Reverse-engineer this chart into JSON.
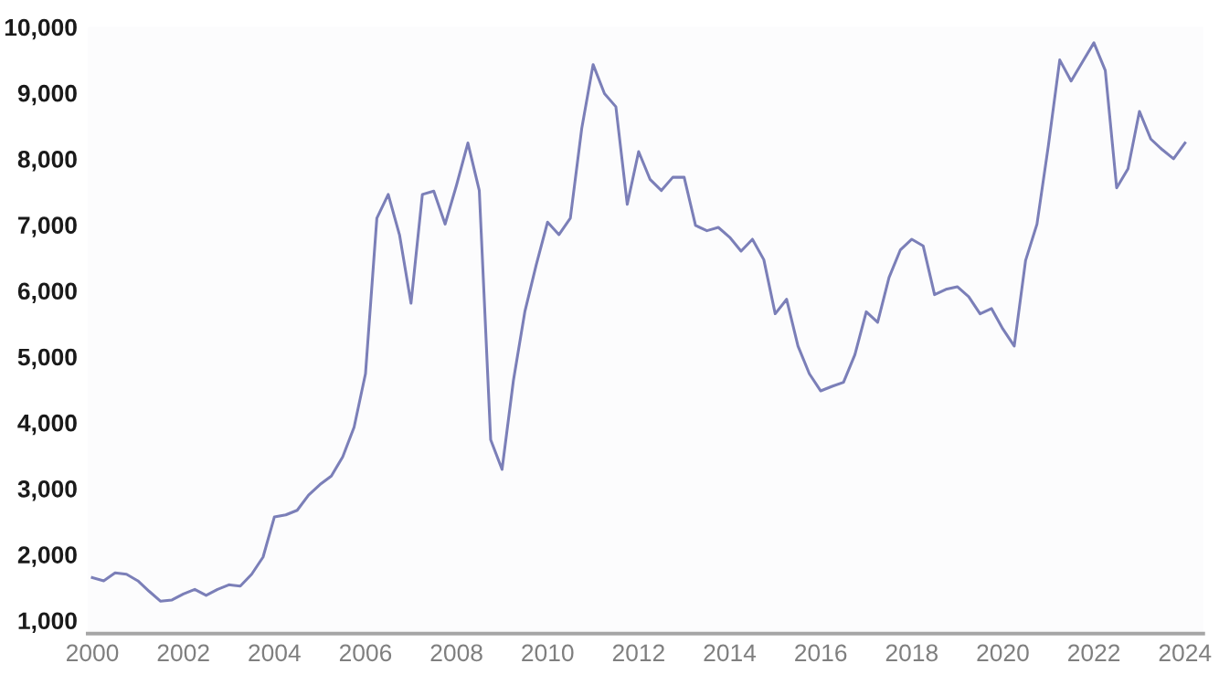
{
  "chart_data": {
    "type": "line",
    "xlim": [
      1999.9,
      2024.4
    ],
    "ylim": [
      800,
      10000
    ],
    "xticks": [
      2000,
      2002,
      2004,
      2006,
      2008,
      2010,
      2012,
      2014,
      2016,
      2018,
      2020,
      2022,
      2024
    ],
    "yticks": [
      {
        "value": 1000,
        "label": "1,000"
      },
      {
        "value": 2000,
        "label": "2,000"
      },
      {
        "value": 3000,
        "label": "3,000"
      },
      {
        "value": 4000,
        "label": "4,000"
      },
      {
        "value": 5000,
        "label": "5,000"
      },
      {
        "value": 6000,
        "label": "6,000"
      },
      {
        "value": 7000,
        "label": "7,000"
      },
      {
        "value": 8000,
        "label": "8,000"
      },
      {
        "value": 9000,
        "label": "9,000"
      },
      {
        "value": 10000,
        "label": "10,000"
      }
    ],
    "grid": false,
    "legend": false,
    "marker": "none",
    "line_style": "solid",
    "series": [
      {
        "color": "#7b7fb8",
        "x": [
          2000.0,
          2000.25,
          2000.5,
          2000.75,
          2001.0,
          2001.25,
          2001.5,
          2001.75,
          2002.0,
          2002.25,
          2002.5,
          2002.75,
          2003.0,
          2003.25,
          2003.5,
          2003.75,
          2004.0,
          2004.25,
          2004.5,
          2004.75,
          2005.0,
          2005.25,
          2005.5,
          2005.75,
          2006.0,
          2006.25,
          2006.5,
          2006.75,
          2007.0,
          2007.25,
          2007.5,
          2007.75,
          2008.0,
          2008.25,
          2008.5,
          2008.75,
          2009.0,
          2009.25,
          2009.5,
          2009.75,
          2010.0,
          2010.25,
          2010.5,
          2010.75,
          2011.0,
          2011.25,
          2011.5,
          2011.75,
          2012.0,
          2012.25,
          2012.5,
          2012.75,
          2013.0,
          2013.25,
          2013.5,
          2013.75,
          2014.0,
          2014.25,
          2014.5,
          2014.75,
          2015.0,
          2015.25,
          2015.5,
          2015.75,
          2016.0,
          2016.25,
          2016.5,
          2016.75,
          2017.0,
          2017.25,
          2017.5,
          2017.75,
          2018.0,
          2018.25,
          2018.5,
          2018.75,
          2019.0,
          2019.25,
          2019.5,
          2019.75,
          2020.0,
          2020.25,
          2020.5,
          2020.75,
          2021.0,
          2021.25,
          2021.5,
          2021.75,
          2022.0,
          2022.25,
          2022.5,
          2022.75,
          2023.0,
          2023.25,
          2023.5,
          2023.75,
          2024.0
        ],
        "values": [
          1650,
          1600,
          1720,
          1700,
          1600,
          1440,
          1290,
          1310,
          1400,
          1470,
          1380,
          1470,
          1540,
          1520,
          1700,
          1960,
          2570,
          2600,
          2670,
          2900,
          3060,
          3190,
          3480,
          3930,
          4740,
          7100,
          7460,
          6840,
          5810,
          7460,
          7510,
          7010,
          7600,
          8240,
          7520,
          3740,
          3290,
          4640,
          5680,
          6390,
          7040,
          6850,
          7100,
          8460,
          9430,
          8990,
          8790,
          7310,
          8110,
          7690,
          7520,
          7720,
          7720,
          6990,
          6910,
          6960,
          6810,
          6600,
          6780,
          6470,
          5650,
          5870,
          5160,
          4740,
          4480,
          4550,
          4610,
          5030,
          5680,
          5520,
          6200,
          6620,
          6780,
          6680,
          5940,
          6020,
          6060,
          5910,
          5650,
          5730,
          5420,
          5160,
          6460,
          7010,
          8200,
          9500,
          9180,
          9470,
          9760,
          9340,
          7560,
          7850,
          8720,
          8300,
          8140,
          8000,
          8240
        ]
      }
    ]
  }
}
